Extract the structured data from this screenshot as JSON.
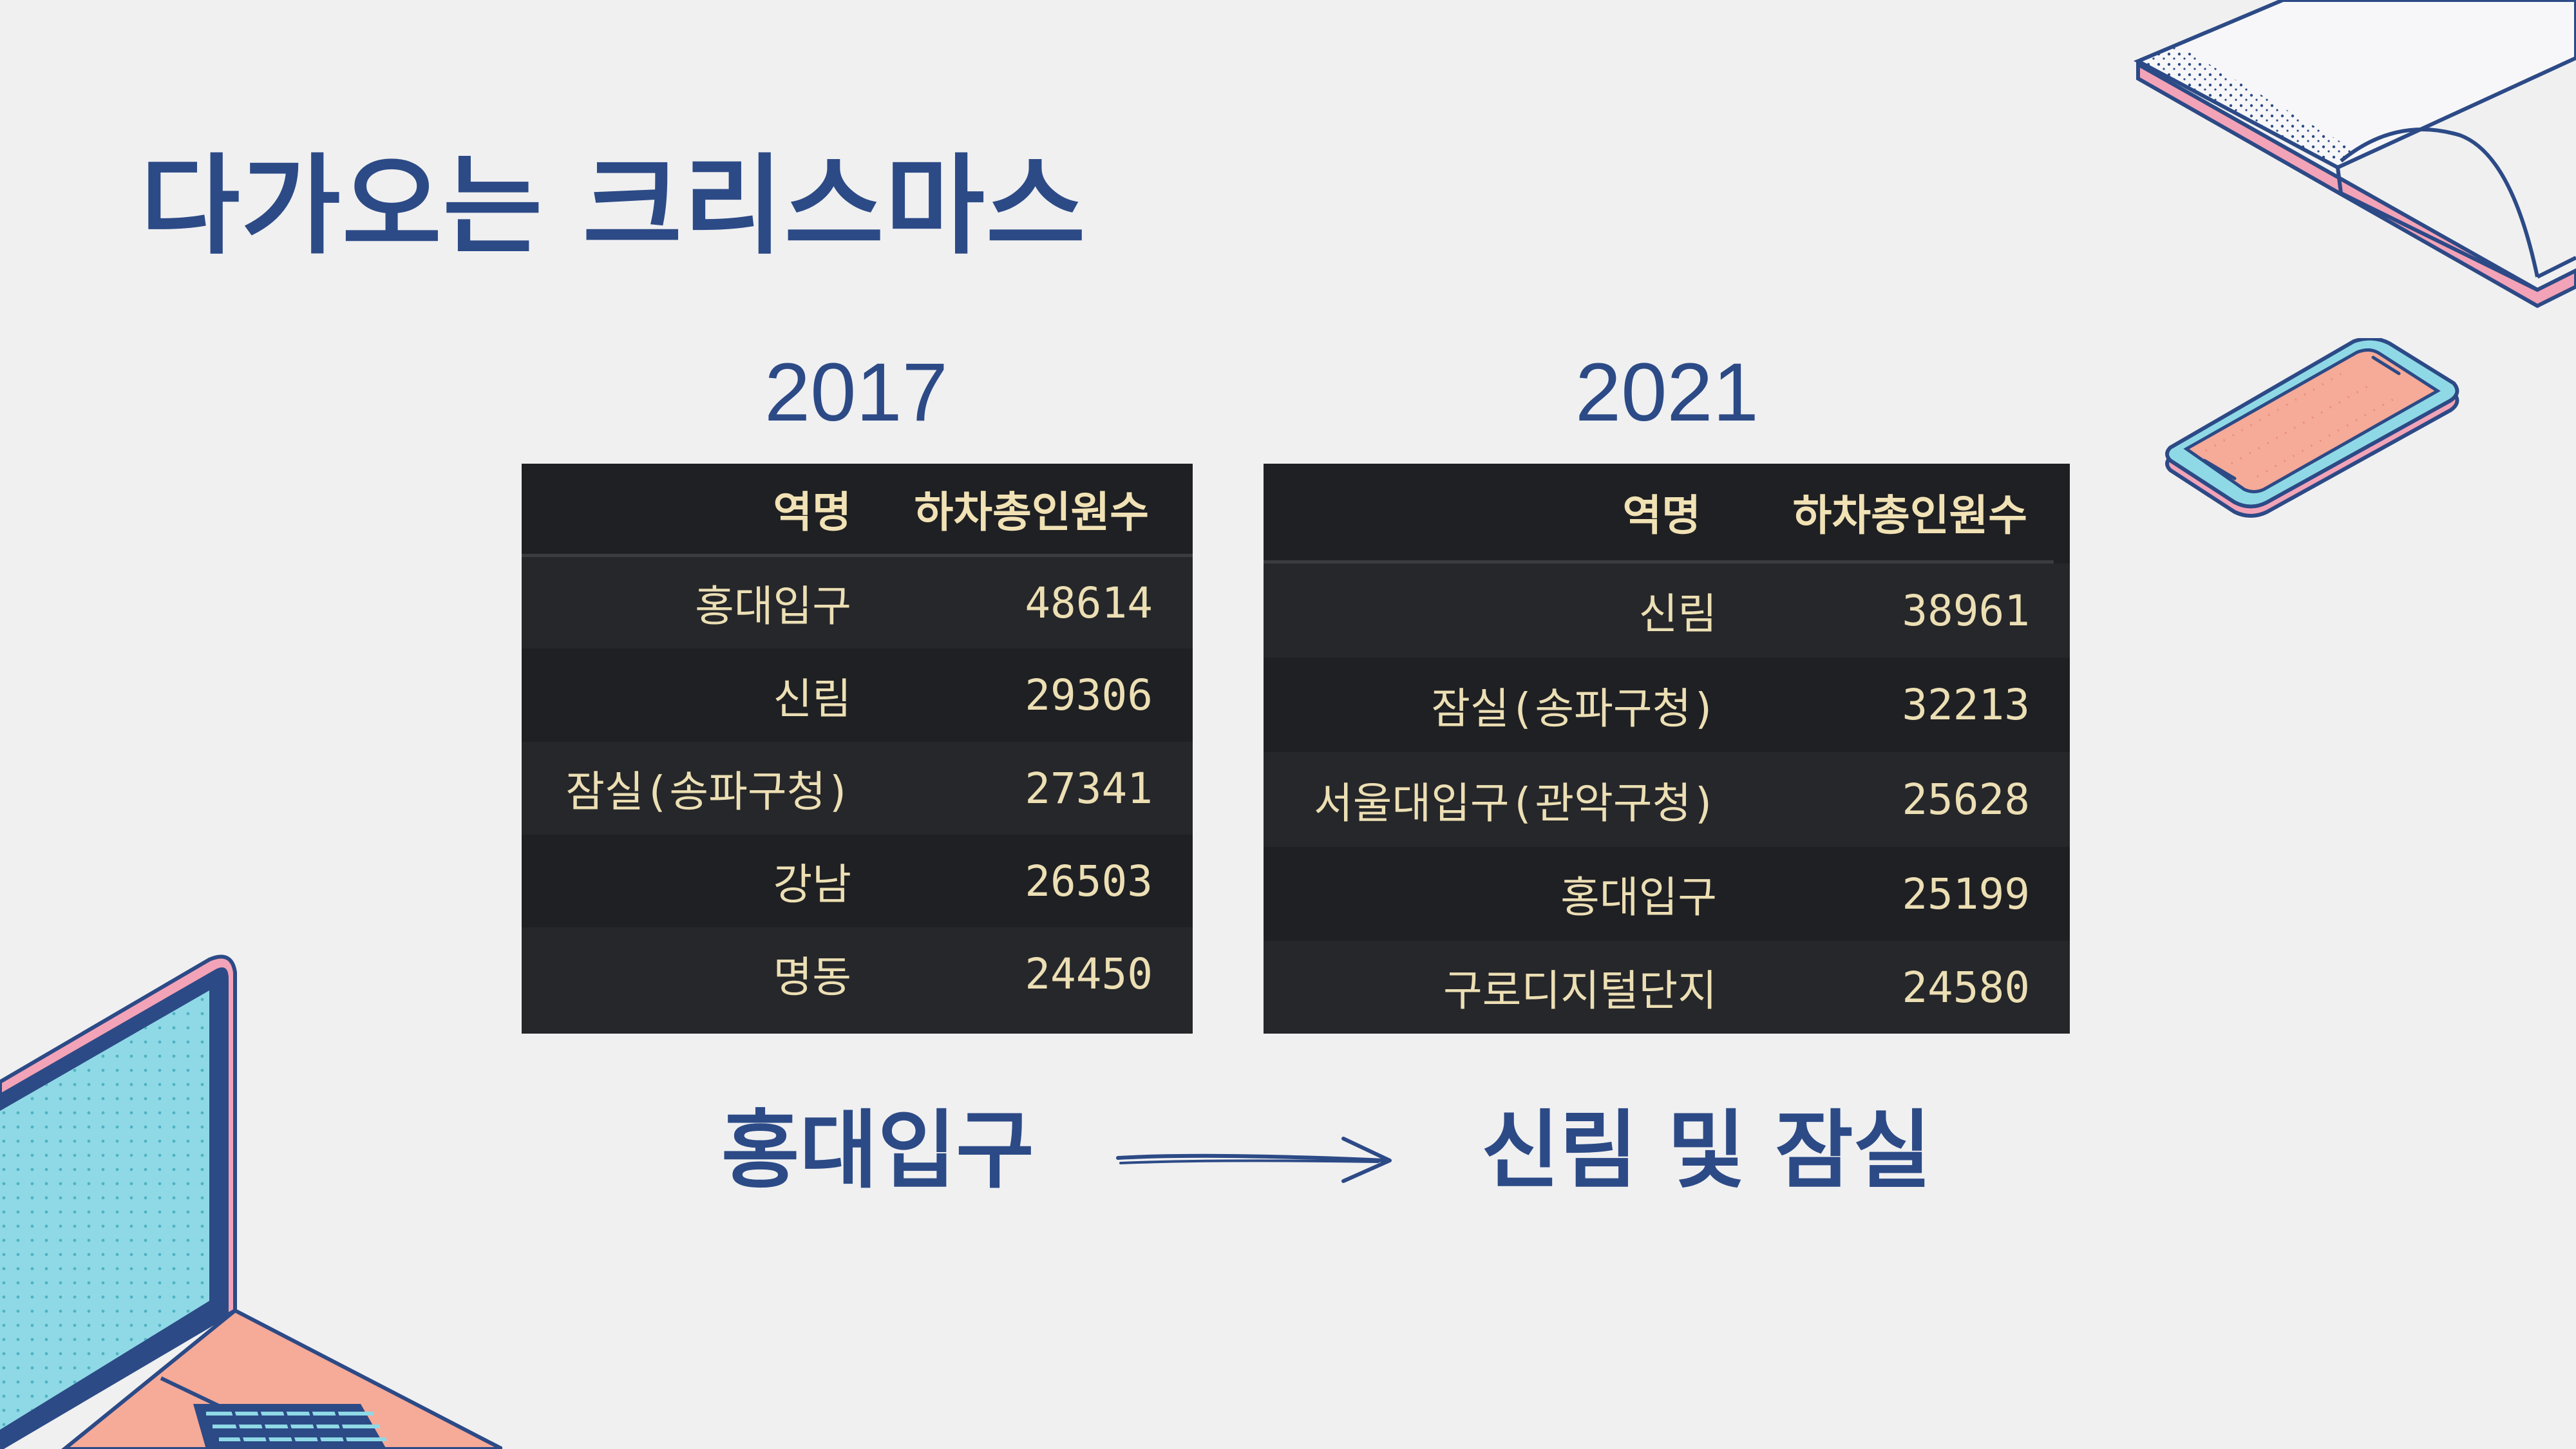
{
  "title": "다가오는 크리스마스",
  "tables": [
    {
      "year": "2017",
      "headers": [
        "역명",
        "하차총인원수"
      ],
      "rows": [
        [
          "홍대입구",
          "48614"
        ],
        [
          "신림",
          "29306"
        ],
        [
          "잠실(송파구청)",
          "27341"
        ],
        [
          "강남",
          "26503"
        ],
        [
          "명동",
          "24450"
        ]
      ]
    },
    {
      "year": "2021",
      "headers": [
        "역명",
        "하차총인원수"
      ],
      "rows": [
        [
          "신림",
          "38961"
        ],
        [
          "잠실(송파구청)",
          "32213"
        ],
        [
          "서울대입구(관악구청)",
          "25628"
        ],
        [
          "홍대입구",
          "25199"
        ],
        [
          "구로디지털단지",
          "24580"
        ]
      ]
    }
  ],
  "transition": {
    "from": "홍대입구",
    "to": "신림 및 잠실"
  },
  "decorations": [
    "open-book-illustration",
    "smartphone-illustration",
    "laptop-illustration"
  ]
}
